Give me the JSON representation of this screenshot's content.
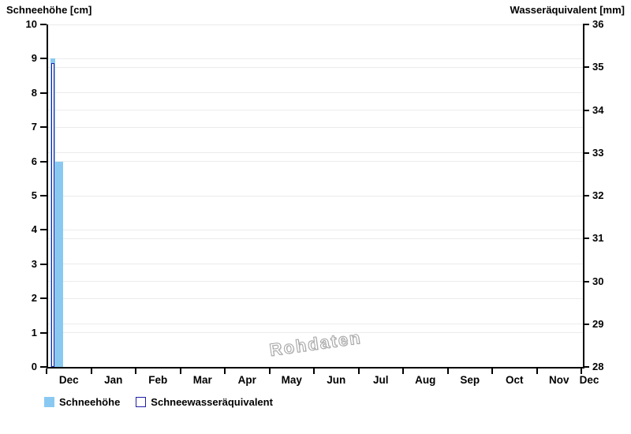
{
  "chart_data": {
    "type": "bar",
    "title_left": "Schneehöhe [cm]",
    "title_right": "Wasseräquivalent [mm]",
    "watermark": "Rohdaten",
    "left_axis": {
      "label": "Schneehöhe [cm]",
      "unit": "cm",
      "min": 0,
      "max": 10,
      "ticks": [
        0,
        1,
        2,
        3,
        4,
        5,
        6,
        7,
        8,
        9,
        10
      ]
    },
    "right_axis": {
      "label": "Wasseräquivalent [mm]",
      "unit": "mm",
      "min": 28,
      "max": 36,
      "ticks": [
        28,
        29,
        30,
        31,
        32,
        33,
        34,
        35,
        36
      ]
    },
    "x_axis": {
      "labels": [
        "Dec",
        "Jan",
        "Feb",
        "Mar",
        "Apr",
        "May",
        "Jun",
        "Jul",
        "Aug",
        "Sep",
        "Oct",
        "Nov",
        "Dec"
      ],
      "segments": 12,
      "grid": false
    },
    "series": [
      {
        "name": "Schneehöhe",
        "type": "bar",
        "axis": "left",
        "unit": "cm",
        "fill": "#89C9F1",
        "bars": [
          {
            "x_frac": 0.0044,
            "width_frac": 0.0096,
            "value": 9
          },
          {
            "x_frac": 0.014,
            "width_frac": 0.0133,
            "value": 6
          }
        ]
      },
      {
        "name": "Schneewasseräquivalent",
        "type": "bar-outline",
        "axis": "right",
        "unit": "mm",
        "fill": "#ffffff",
        "stroke": "#1E1EA8",
        "bars": [
          {
            "x_frac": 0.0062,
            "width_frac": 0.0052,
            "value": 35.1
          }
        ]
      }
    ],
    "colors": {
      "grid": "#ebebeb",
      "axis": "#000000",
      "text": "#000000",
      "watermark": "#a8a8a8"
    },
    "legend": {
      "position": "bottom-left",
      "items": [
        {
          "label": "Schneehöhe",
          "swatch_fill": "#89C9F1",
          "swatch_stroke": "#89C9F1"
        },
        {
          "label": "Schneewasseräquivalent",
          "swatch_fill": "#ffffff",
          "swatch_stroke": "#1E1EA8"
        }
      ]
    }
  }
}
